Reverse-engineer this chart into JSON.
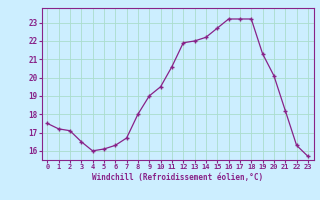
{
  "x": [
    0,
    1,
    2,
    3,
    4,
    5,
    6,
    7,
    8,
    9,
    10,
    11,
    12,
    13,
    14,
    15,
    16,
    17,
    18,
    19,
    20,
    21,
    22,
    23
  ],
  "y": [
    17.5,
    17.2,
    17.1,
    16.5,
    16.0,
    16.1,
    16.3,
    16.7,
    18.0,
    19.0,
    19.5,
    20.6,
    21.9,
    22.0,
    22.2,
    22.7,
    23.2,
    23.2,
    23.2,
    21.3,
    20.1,
    18.2,
    16.3,
    15.7
  ],
  "line_color": "#882288",
  "marker": "+",
  "bg_color": "#cceeff",
  "grid_color": "#aaddcc",
  "xlabel": "Windchill (Refroidissement éolien,°C)",
  "xlabel_color": "#882288",
  "tick_color": "#882288",
  "ylim": [
    15.5,
    23.8
  ],
  "xlim": [
    -0.5,
    23.5
  ],
  "yticks": [
    16,
    17,
    18,
    19,
    20,
    21,
    22,
    23
  ],
  "xticks": [
    0,
    1,
    2,
    3,
    4,
    5,
    6,
    7,
    8,
    9,
    10,
    11,
    12,
    13,
    14,
    15,
    16,
    17,
    18,
    19,
    20,
    21,
    22,
    23
  ]
}
